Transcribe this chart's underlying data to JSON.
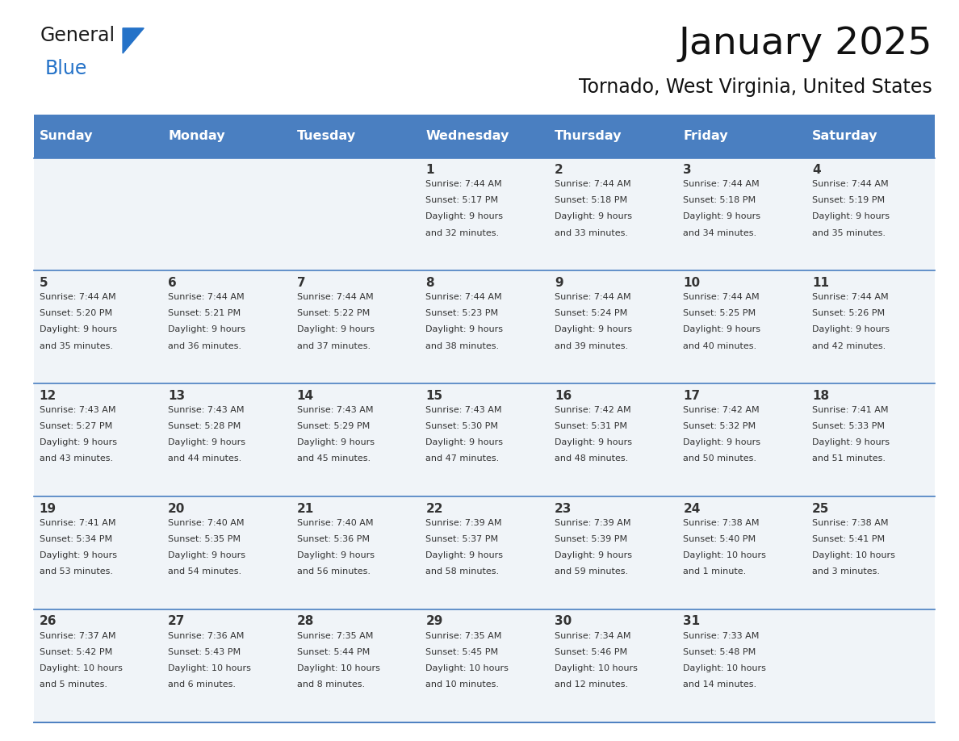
{
  "title": "January 2025",
  "subtitle": "Tornado, West Virginia, United States",
  "days_of_week": [
    "Sunday",
    "Monday",
    "Tuesday",
    "Wednesday",
    "Thursday",
    "Friday",
    "Saturday"
  ],
  "header_bg": "#4a7fc1",
  "header_text": "#FFFFFF",
  "row_bg_odd": "#FFFFFF",
  "row_bg_even": "#F0F4F8",
  "line_color": "#4a7fc1",
  "text_color": "#333333",
  "calendar_data": [
    [
      null,
      null,
      null,
      {
        "day": 1,
        "sunrise": "7:44 AM",
        "sunset": "5:17 PM",
        "daylight": "9 hours and 32 minutes."
      },
      {
        "day": 2,
        "sunrise": "7:44 AM",
        "sunset": "5:18 PM",
        "daylight": "9 hours and 33 minutes."
      },
      {
        "day": 3,
        "sunrise": "7:44 AM",
        "sunset": "5:18 PM",
        "daylight": "9 hours and 34 minutes."
      },
      {
        "day": 4,
        "sunrise": "7:44 AM",
        "sunset": "5:19 PM",
        "daylight": "9 hours and 35 minutes."
      }
    ],
    [
      {
        "day": 5,
        "sunrise": "7:44 AM",
        "sunset": "5:20 PM",
        "daylight": "9 hours and 35 minutes."
      },
      {
        "day": 6,
        "sunrise": "7:44 AM",
        "sunset": "5:21 PM",
        "daylight": "9 hours and 36 minutes."
      },
      {
        "day": 7,
        "sunrise": "7:44 AM",
        "sunset": "5:22 PM",
        "daylight": "9 hours and 37 minutes."
      },
      {
        "day": 8,
        "sunrise": "7:44 AM",
        "sunset": "5:23 PM",
        "daylight": "9 hours and 38 minutes."
      },
      {
        "day": 9,
        "sunrise": "7:44 AM",
        "sunset": "5:24 PM",
        "daylight": "9 hours and 39 minutes."
      },
      {
        "day": 10,
        "sunrise": "7:44 AM",
        "sunset": "5:25 PM",
        "daylight": "9 hours and 40 minutes."
      },
      {
        "day": 11,
        "sunrise": "7:44 AM",
        "sunset": "5:26 PM",
        "daylight": "9 hours and 42 minutes."
      }
    ],
    [
      {
        "day": 12,
        "sunrise": "7:43 AM",
        "sunset": "5:27 PM",
        "daylight": "9 hours and 43 minutes."
      },
      {
        "day": 13,
        "sunrise": "7:43 AM",
        "sunset": "5:28 PM",
        "daylight": "9 hours and 44 minutes."
      },
      {
        "day": 14,
        "sunrise": "7:43 AM",
        "sunset": "5:29 PM",
        "daylight": "9 hours and 45 minutes."
      },
      {
        "day": 15,
        "sunrise": "7:43 AM",
        "sunset": "5:30 PM",
        "daylight": "9 hours and 47 minutes."
      },
      {
        "day": 16,
        "sunrise": "7:42 AM",
        "sunset": "5:31 PM",
        "daylight": "9 hours and 48 minutes."
      },
      {
        "day": 17,
        "sunrise": "7:42 AM",
        "sunset": "5:32 PM",
        "daylight": "9 hours and 50 minutes."
      },
      {
        "day": 18,
        "sunrise": "7:41 AM",
        "sunset": "5:33 PM",
        "daylight": "9 hours and 51 minutes."
      }
    ],
    [
      {
        "day": 19,
        "sunrise": "7:41 AM",
        "sunset": "5:34 PM",
        "daylight": "9 hours and 53 minutes."
      },
      {
        "day": 20,
        "sunrise": "7:40 AM",
        "sunset": "5:35 PM",
        "daylight": "9 hours and 54 minutes."
      },
      {
        "day": 21,
        "sunrise": "7:40 AM",
        "sunset": "5:36 PM",
        "daylight": "9 hours and 56 minutes."
      },
      {
        "day": 22,
        "sunrise": "7:39 AM",
        "sunset": "5:37 PM",
        "daylight": "9 hours and 58 minutes."
      },
      {
        "day": 23,
        "sunrise": "7:39 AM",
        "sunset": "5:39 PM",
        "daylight": "9 hours and 59 minutes."
      },
      {
        "day": 24,
        "sunrise": "7:38 AM",
        "sunset": "5:40 PM",
        "daylight": "10 hours and 1 minute."
      },
      {
        "day": 25,
        "sunrise": "7:38 AM",
        "sunset": "5:41 PM",
        "daylight": "10 hours and 3 minutes."
      }
    ],
    [
      {
        "day": 26,
        "sunrise": "7:37 AM",
        "sunset": "5:42 PM",
        "daylight": "10 hours and 5 minutes."
      },
      {
        "day": 27,
        "sunrise": "7:36 AM",
        "sunset": "5:43 PM",
        "daylight": "10 hours and 6 minutes."
      },
      {
        "day": 28,
        "sunrise": "7:35 AM",
        "sunset": "5:44 PM",
        "daylight": "10 hours and 8 minutes."
      },
      {
        "day": 29,
        "sunrise": "7:35 AM",
        "sunset": "5:45 PM",
        "daylight": "10 hours and 10 minutes."
      },
      {
        "day": 30,
        "sunrise": "7:34 AM",
        "sunset": "5:46 PM",
        "daylight": "10 hours and 12 minutes."
      },
      {
        "day": 31,
        "sunrise": "7:33 AM",
        "sunset": "5:48 PM",
        "daylight": "10 hours and 14 minutes."
      },
      null
    ]
  ],
  "logo_general_color": "#1a1a1a",
  "logo_blue_color": "#2472C8",
  "logo_triangle_color": "#2472C8",
  "figsize": [
    11.88,
    9.18
  ],
  "dpi": 100
}
